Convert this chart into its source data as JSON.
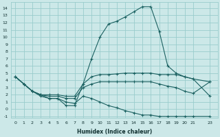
{
  "xlabel": "Humidex (Indice chaleur)",
  "bg_color": "#cce8e8",
  "grid_color": "#99cccc",
  "line_color": "#1a6060",
  "xlim": [
    -0.5,
    23.9
  ],
  "ylim": [
    -1.2,
    14.8
  ],
  "xticks": [
    0,
    1,
    2,
    3,
    4,
    5,
    6,
    7,
    8,
    9,
    10,
    11,
    12,
    13,
    14,
    15,
    16,
    17,
    18,
    19,
    20,
    21,
    23
  ],
  "yticks": [
    -1,
    0,
    1,
    2,
    3,
    4,
    5,
    6,
    7,
    8,
    9,
    10,
    11,
    12,
    13,
    14
  ],
  "yticklabels": [
    "-1",
    "0",
    "1",
    "2",
    "3",
    "4",
    "5",
    "6",
    "7",
    "8",
    "9",
    "10",
    "11",
    "12",
    "13",
    "14"
  ],
  "series": {
    "main": [
      4.5,
      3.5,
      2.5,
      2.0,
      1.5,
      1.5,
      0.5,
      0.5,
      3.5,
      7.0,
      10.0,
      11.8,
      12.2,
      12.8,
      13.5,
      14.2,
      14.2,
      10.8,
      6.0,
      5.0,
      4.5,
      4.2,
      null,
      1.8
    ],
    "upper": [
      4.5,
      3.5,
      2.5,
      2.0,
      2.0,
      2.0,
      1.8,
      1.8,
      3.5,
      4.5,
      4.8,
      4.8,
      4.9,
      5.0,
      5.0,
      5.0,
      5.0,
      4.8,
      4.8,
      4.8,
      4.5,
      4.2,
      null,
      3.8
    ],
    "middle": [
      4.5,
      3.5,
      2.5,
      2.0,
      1.8,
      1.8,
      1.5,
      1.5,
      3.0,
      3.5,
      3.8,
      3.8,
      3.8,
      3.8,
      3.8,
      3.8,
      3.8,
      3.5,
      3.2,
      3.0,
      2.5,
      2.2,
      null,
      3.8
    ],
    "lower": [
      4.5,
      3.5,
      2.5,
      1.8,
      1.5,
      1.5,
      1.0,
      0.8,
      1.8,
      1.5,
      1.0,
      0.5,
      0.2,
      -0.2,
      -0.5,
      -0.8,
      -0.8,
      -1.0,
      -1.0,
      -1.0,
      -1.0,
      -1.0,
      null,
      -1.0
    ]
  }
}
